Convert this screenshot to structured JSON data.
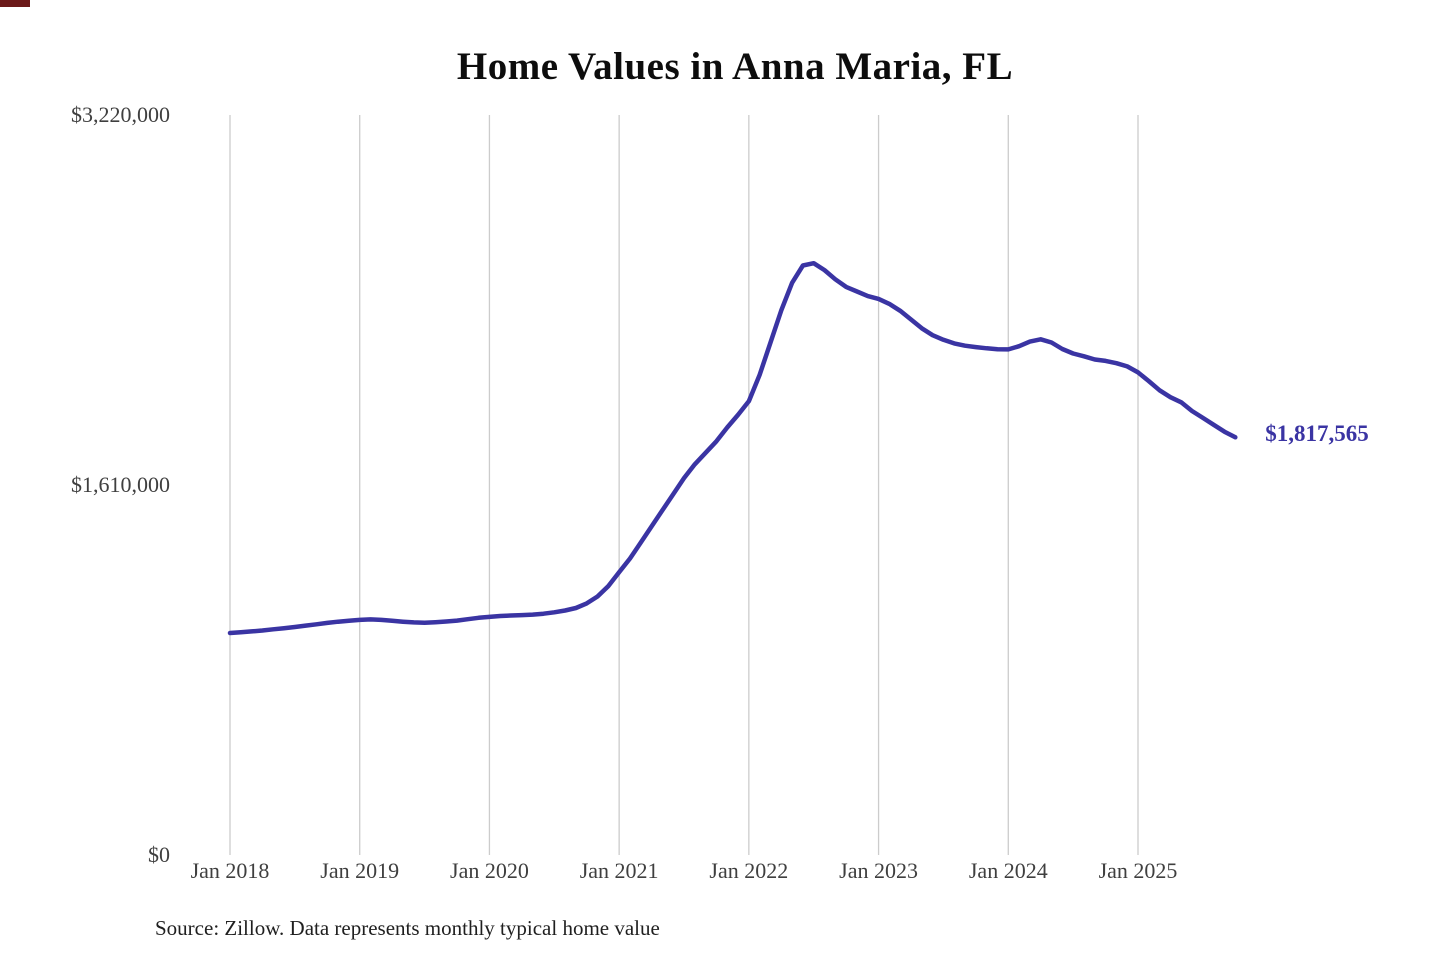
{
  "chart": {
    "title": "Home Values in Anna Maria, FL",
    "end_label": "$1,817,565",
    "source_note": "Source: Zillow. Data represents monthly typical home value",
    "line_color": "#3a34a3",
    "grid_color": "#cccccc",
    "axis_label_color": "#3f3f3f"
  },
  "chart_data": {
    "type": "line",
    "title": "Home Values in Anna Maria, FL",
    "xlabel": "",
    "ylabel": "",
    "ylim": [
      0,
      3220000
    ],
    "grid": "vertical-only",
    "legend": "none",
    "y_ticks": [
      {
        "value": 0,
        "label": "$0"
      },
      {
        "value": 1610000,
        "label": "$1,610,000"
      },
      {
        "value": 3220000,
        "label": "$3,220,000"
      }
    ],
    "x_tick_labels": [
      "Jan 2018",
      "Jan 2019",
      "Jan 2020",
      "Jan 2021",
      "Jan 2022",
      "Jan 2023",
      "Jan 2024",
      "Jan 2025"
    ],
    "x_start_month": "2018-01",
    "x_frequency": "monthly",
    "latest_value": 1817565,
    "latest_value_label": "$1,817,565",
    "source": "Source: Zillow. Data represents monthly typical home value",
    "series": [
      {
        "name": "Typical home value",
        "values": [
          966000,
          969000,
          973000,
          977000,
          982000,
          987000,
          992000,
          998000,
          1004000,
          1010000,
          1015000,
          1019000,
          1023000,
          1025000,
          1023000,
          1019000,
          1015000,
          1012000,
          1011000,
          1013000,
          1016000,
          1020000,
          1026000,
          1032000,
          1036000,
          1040000,
          1042000,
          1044000,
          1046000,
          1050000,
          1056000,
          1064000,
          1075000,
          1095000,
          1125000,
          1170000,
          1230000,
          1290000,
          1360000,
          1430000,
          1500000,
          1570000,
          1640000,
          1700000,
          1750000,
          1800000,
          1860000,
          1915000,
          1975000,
          2090000,
          2230000,
          2370000,
          2490000,
          2565000,
          2575000,
          2545000,
          2505000,
          2472000,
          2452000,
          2432000,
          2420000,
          2398000,
          2368000,
          2330000,
          2292000,
          2262000,
          2242000,
          2226000,
          2216000,
          2210000,
          2205000,
          2201000,
          2200000,
          2214000,
          2234000,
          2244000,
          2230000,
          2202000,
          2182000,
          2170000,
          2156000,
          2150000,
          2140000,
          2126000,
          2100000,
          2062000,
          2022000,
          1992000,
          1970000,
          1932000,
          1902000,
          1872000,
          1842000,
          1817565
        ]
      }
    ]
  }
}
